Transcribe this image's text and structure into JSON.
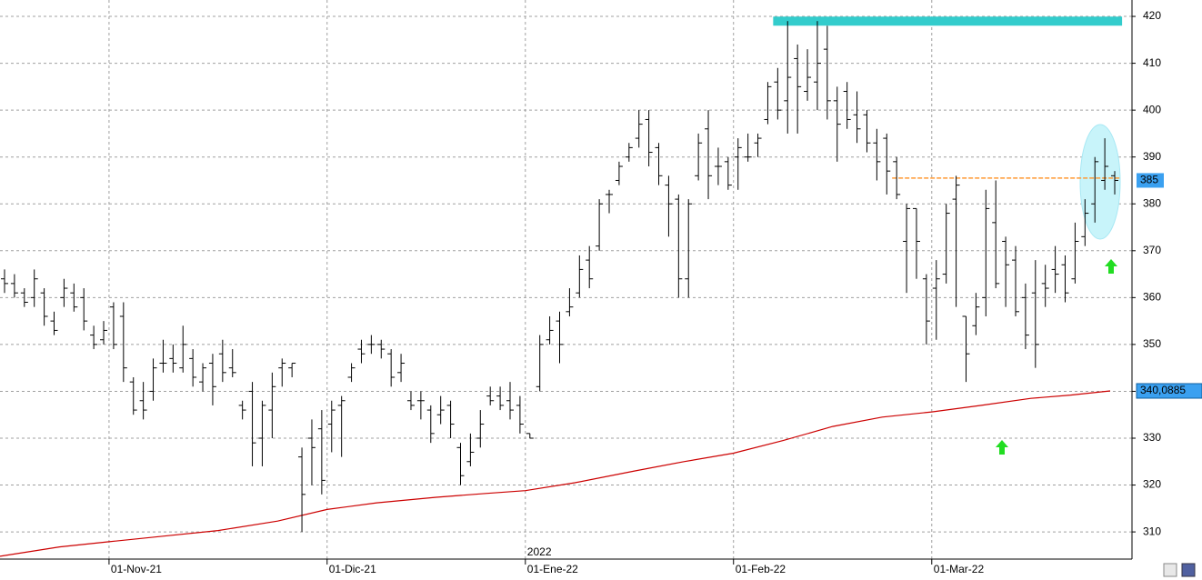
{
  "chart_data": {
    "type": "ohlc",
    "x": [
      0,
      1,
      2,
      3,
      4,
      5,
      6,
      7,
      8,
      9,
      10,
      11,
      12,
      13,
      14,
      15,
      16,
      17,
      18,
      19,
      20,
      21,
      22,
      23,
      24,
      25,
      26,
      27,
      28,
      29,
      30,
      31,
      32,
      33,
      34,
      35,
      36,
      37,
      38,
      39,
      40,
      41,
      42,
      43,
      44,
      45,
      46,
      47,
      48,
      49,
      50,
      51,
      52,
      53,
      54,
      55,
      56,
      57,
      58,
      59,
      60,
      61,
      62,
      63,
      64,
      65,
      66,
      67,
      68,
      69,
      70,
      71,
      72,
      73,
      74,
      75,
      76,
      77,
      78,
      79,
      80,
      81,
      82,
      83,
      84,
      85,
      86,
      87,
      88,
      89,
      90,
      91,
      92,
      93,
      94,
      95,
      96,
      97,
      98,
      99,
      100,
      101,
      102,
      103,
      104,
      105,
      106,
      107,
      108,
      109,
      110,
      111,
      112
    ],
    "open": [
      364,
      363,
      361,
      360,
      361,
      355,
      360,
      361,
      360,
      352,
      351,
      358,
      356,
      342,
      338,
      340,
      346,
      347,
      345,
      347,
      342,
      346,
      348,
      345,
      337,
      340,
      330,
      336,
      345,
      345,
      326,
      330,
      332,
      333,
      337,
      343,
      349,
      350,
      350,
      348,
      344,
      338,
      338,
      336,
      335,
      337,
      328,
      325,
      330,
      339,
      339,
      338,
      337,
      331,
      341,
      351,
      355,
      357,
      361,
      368,
      371,
      382,
      385,
      390,
      394,
      398,
      392,
      384,
      381,
      364,
      386,
      396,
      388,
      389,
      390,
      390,
      393,
      398,
      406,
      402,
      411,
      404,
      406,
      413,
      402,
      404,
      399,
      399,
      393,
      394,
      389,
      372,
      379,
      364,
      362,
      365,
      381,
      356,
      354,
      360,
      376,
      372,
      368,
      360,
      361,
      363,
      366,
      367,
      364,
      373,
      380,
      385,
      386
    ],
    "high": [
      366,
      365,
      362,
      366,
      362,
      357,
      364,
      363,
      362,
      354,
      355,
      359,
      359,
      343,
      342,
      347,
      351,
      350,
      354,
      349,
      346,
      348,
      351,
      349,
      338,
      342,
      338,
      344,
      347,
      346,
      328,
      334,
      336,
      338,
      339,
      346,
      351,
      352,
      351,
      349,
      348,
      340,
      340,
      337,
      339,
      338,
      329,
      331,
      336,
      341,
      341,
      342,
      339,
      331,
      352,
      356,
      357,
      362,
      369,
      371,
      381,
      383,
      389,
      393,
      400,
      400,
      393,
      386,
      382,
      381,
      395,
      400,
      392,
      390,
      394,
      395,
      395,
      406,
      409,
      419,
      414,
      413,
      419,
      418,
      405,
      406,
      404,
      400,
      396,
      395,
      390,
      380,
      379,
      365,
      368,
      380,
      386,
      356,
      361,
      383,
      385,
      373,
      371,
      363,
      368,
      367,
      371,
      369,
      376,
      381,
      390,
      394,
      387
    ],
    "low": [
      361,
      360,
      358,
      358,
      354,
      352,
      358,
      357,
      353,
      349,
      350,
      349,
      342,
      335,
      334,
      338,
      344,
      344,
      344,
      341,
      340,
      337,
      342,
      343,
      334,
      324,
      324,
      330,
      341,
      343,
      310,
      320,
      318,
      327,
      326,
      342,
      346,
      348,
      347,
      341,
      342,
      336,
      334,
      329,
      333,
      330,
      320,
      324,
      328,
      337,
      336,
      334,
      331,
      330,
      340,
      350,
      346,
      356,
      360,
      362,
      370,
      378,
      384,
      389,
      392,
      388,
      384,
      373,
      360,
      360,
      385,
      381,
      384,
      383,
      383,
      389,
      390,
      397,
      398,
      395,
      395,
      402,
      400,
      398,
      389,
      396,
      393,
      391,
      385,
      382,
      381,
      361,
      364,
      350,
      351,
      363,
      358,
      342,
      352,
      356,
      362,
      358,
      356,
      349,
      345,
      358,
      361,
      359,
      363,
      371,
      376,
      383,
      382
    ],
    "close": [
      363,
      361,
      359,
      364,
      356,
      353,
      362,
      358,
      355,
      350,
      353,
      350,
      345,
      336,
      336,
      345,
      346,
      346,
      350,
      343,
      345,
      341,
      344,
      344,
      336,
      329,
      337,
      341,
      346,
      346,
      318,
      328,
      321,
      336,
      338,
      345,
      348,
      350,
      349,
      343,
      346,
      337,
      338,
      331,
      336,
      333,
      322,
      327,
      333,
      338,
      337,
      336,
      333,
      330,
      350,
      353,
      350,
      358,
      366,
      364,
      380,
      382,
      388,
      392,
      397,
      391,
      386,
      380,
      364,
      380,
      393,
      386,
      388,
      384,
      392,
      390,
      394,
      405,
      400,
      407,
      405,
      407,
      410,
      402,
      397,
      398,
      396,
      393,
      389,
      387,
      382,
      379,
      372,
      355,
      364,
      378,
      384,
      348,
      358,
      379,
      363,
      367,
      357,
      352,
      350,
      362,
      365,
      361,
      372,
      378,
      389,
      388,
      385
    ],
    "bar_color": "#000000",
    "moving_average": {
      "color": "#cc0000",
      "x": [
        0,
        6,
        11,
        17,
        22,
        28,
        33,
        38,
        44,
        49,
        53,
        58,
        64,
        69,
        74,
        79,
        84,
        89,
        94,
        99,
        104,
        108,
        112
      ],
      "values": [
        304.8,
        306.8,
        307.9,
        309.2,
        310.3,
        312.3,
        314.8,
        316.2,
        317.4,
        318.2,
        318.8,
        320.5,
        323,
        325,
        326.8,
        329.5,
        332.5,
        334.5,
        335.6,
        337,
        338.5,
        339.2,
        340.0885
      ],
      "last_label": {
        "value": 340.0885,
        "label": "340,0885"
      }
    },
    "last_price": 385,
    "levels": [
      {
        "value": 419,
        "color": "#33cccc",
        "x": [
          78,
          113.2
        ]
      },
      {
        "value": 385.5,
        "color": "#ff9933",
        "x": [
          90,
          113
        ]
      }
    ],
    "xlim": [
      0,
      114.2
    ],
    "xticks": [
      {
        "value": 11,
        "label": "01-Nov-21"
      },
      {
        "value": 33,
        "label": "01-Dic-21"
      },
      {
        "value": 53,
        "label": "01-Ene-22"
      },
      {
        "value": 74,
        "label": "01-Feb-22"
      },
      {
        "value": 94,
        "label": "01-Mar-22"
      }
    ],
    "year_marker": {
      "value": 53,
      "label": "2022"
    },
    "ylim": [
      304.2,
      423.5
    ],
    "yticks": [
      310,
      320,
      330,
      340,
      350,
      360,
      370,
      380,
      390,
      400,
      410,
      420
    ],
    "grid": true
  }
}
